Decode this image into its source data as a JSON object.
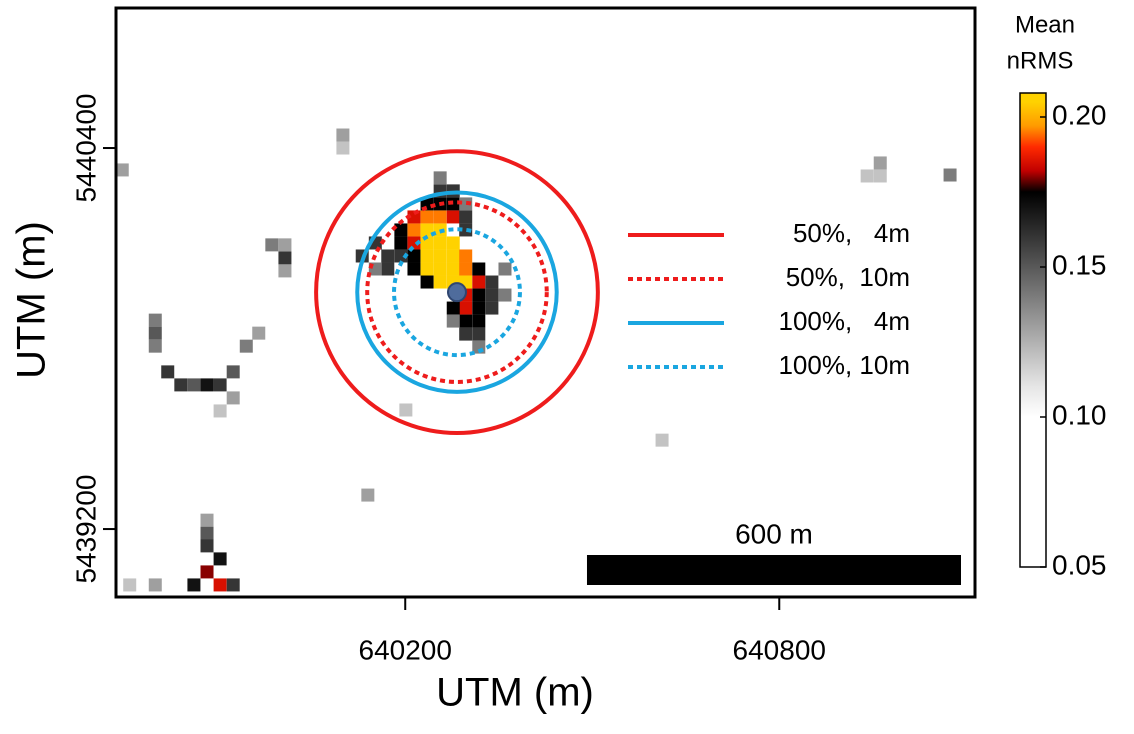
{
  "chart_data": {
    "type": "heatmap",
    "xlabel": "UTM (m)",
    "ylabel": "UTM (m)",
    "xlim": [
      639736,
      641114
    ],
    "ylim": [
      5438986,
      5440841
    ],
    "xticks": [
      640200,
      640800
    ],
    "yticks": [
      5439200,
      5440400
    ],
    "cells": {
      "x": [
        640235,
        640256,
        640235,
        640256,
        640277,
        640235,
        640256,
        640277,
        640235,
        640256,
        640277,
        640256,
        640277,
        640297,
        640235,
        640256,
        640214,
        640297,
        640297,
        640214,
        640277,
        640214,
        640318,
        640297,
        640297,
        640235,
        640256,
        640277,
        640193,
        640193,
        640214,
        640214,
        640235,
        640318,
        640318,
        640277,
        640318,
        640297,
        640318,
        640256,
        640277,
        640297,
        640297,
        640172,
        640193,
        640172,
        640339,
        640339,
        640339,
        640297,
        640318,
        640152,
        640131,
        640256,
        640297,
        640152,
        640360,
        640360,
        640277,
        640318,
        640100,
        640100,
        639746,
        640007,
        639986,
        640007,
        640007,
        639799,
        639799,
        639799,
        639819,
        639840,
        639861,
        639882,
        639903,
        639924,
        639945,
        639965,
        639924,
        639903,
        640201,
        640140,
        640612,
        640962,
        640962,
        640941,
        641074,
        639882,
        639882,
        639882,
        639903,
        639882,
        639903,
        639861,
        639924,
        639799,
        639758
      ],
      "y": [
        5440142,
        5440142,
        5440101,
        5440101,
        5440101,
        5440060,
        5440060,
        5440060,
        5440019,
        5440019,
        5440019,
        5439978,
        5439978,
        5439978,
        5440183,
        5440183,
        5440142,
        5440019,
        5440060,
        5440183,
        5440183,
        5440101,
        5439978,
        5439937,
        5439896,
        5440224,
        5440224,
        5440224,
        5440142,
        5440101,
        5440060,
        5440019,
        5439978,
        5440019,
        5439937,
        5439896,
        5439896,
        5439855,
        5439855,
        5440265,
        5440265,
        5440183,
        5440142,
        5440060,
        5440060,
        5440019,
        5439978,
        5439937,
        5439896,
        5439814,
        5439814,
        5440101,
        5440060,
        5440306,
        5440224,
        5440019,
        5440019,
        5439937,
        5439855,
        5439773,
        5440441,
        5440400,
        5440331,
        5440054,
        5440095,
        5440095,
        5440013,
        5439858,
        5439817,
        5439776,
        5439695,
        5439654,
        5439654,
        5439654,
        5439654,
        5439695,
        5439776,
        5439817,
        5439613,
        5439572,
        5439575,
        5439307,
        5439480,
        5440353,
        5440312,
        5440312,
        5440315,
        5439228,
        5439187,
        5439147,
        5439106,
        5439065,
        5439024,
        5439024,
        5439024,
        5439024,
        5439024
      ],
      "values": [
        0.205,
        0.205,
        0.205,
        0.205,
        0.205,
        0.205,
        0.205,
        0.205,
        0.205,
        0.205,
        0.205,
        0.205,
        0.205,
        0.205,
        0.195,
        0.195,
        0.195,
        0.195,
        0.195,
        0.185,
        0.185,
        0.185,
        0.185,
        0.185,
        0.185,
        0.175,
        0.175,
        0.175,
        0.175,
        0.175,
        0.175,
        0.175,
        0.175,
        0.175,
        0.175,
        0.175,
        0.175,
        0.175,
        0.175,
        0.16,
        0.16,
        0.16,
        0.16,
        0.16,
        0.16,
        0.16,
        0.16,
        0.16,
        0.16,
        0.16,
        0.16,
        0.16,
        0.16,
        0.14,
        0.14,
        0.14,
        0.14,
        0.14,
        0.14,
        0.14,
        0.13,
        0.12,
        0.13,
        0.16,
        0.14,
        0.13,
        0.13,
        0.14,
        0.15,
        0.14,
        0.16,
        0.16,
        0.15,
        0.17,
        0.16,
        0.15,
        0.14,
        0.13,
        0.13,
        0.12,
        0.12,
        0.13,
        0.12,
        0.13,
        0.12,
        0.12,
        0.14,
        0.13,
        0.15,
        0.16,
        0.17,
        0.18,
        0.185,
        0.17,
        0.16,
        0.13,
        0.12
      ]
    },
    "colorbar": {
      "title": [
        "Mean",
        "nRMS"
      ],
      "clim": [
        0.05,
        0.208
      ],
      "ticks": [
        {
          "value": 0.05,
          "label": "0.05"
        },
        {
          "value": 0.1,
          "label": "0.10"
        },
        {
          "value": 0.15,
          "label": "0.15"
        },
        {
          "value": 0.2,
          "label": "0.20"
        }
      ],
      "colorscale": [
        [
          0.05,
          "#ffffff"
        ],
        [
          0.1,
          "#ffffff"
        ],
        [
          0.11,
          "#e6e6e6"
        ],
        [
          0.175,
          "#000000"
        ],
        [
          0.182,
          "#c00000"
        ],
        [
          0.19,
          "#ff2a00"
        ],
        [
          0.197,
          "#ff9a00"
        ],
        [
          0.205,
          "#ffd200"
        ],
        [
          0.208,
          "#ffd200"
        ]
      ]
    },
    "series": [
      {
        "name": "50%,   4m",
        "color": "#ee1c1c",
        "dash": false,
        "radius": 226
      },
      {
        "name": "50%,  10m",
        "color": "#ee1c1c",
        "dash": true,
        "radius": 144
      },
      {
        "name": "100%,   4m",
        "color": "#1aa6e0",
        "dash": false,
        "radius": 160
      },
      {
        "name": "100%, 10m",
        "color": "#1aa6e0",
        "dash": true,
        "radius": 101
      }
    ],
    "center": {
      "x": 640283,
      "y": 5439946,
      "color": "#4f6c9c"
    },
    "scalebar": {
      "label": "600 m",
      "length": 600,
      "color": "#000000"
    }
  }
}
